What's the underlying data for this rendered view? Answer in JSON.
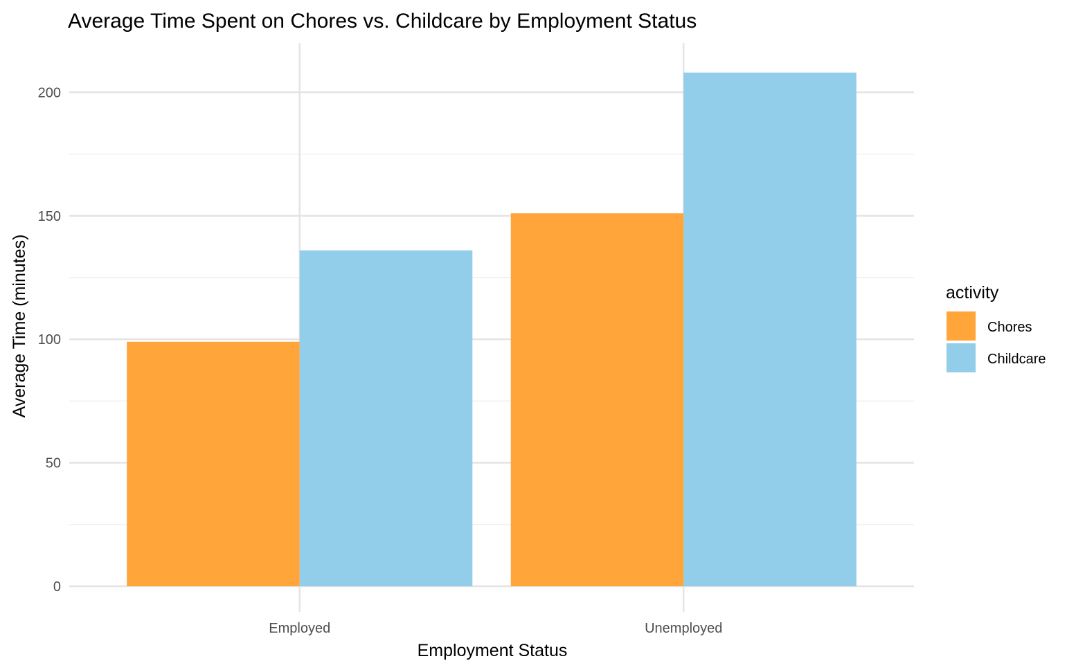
{
  "chart_data": {
    "type": "bar",
    "title": "Average Time Spent on Chores vs. Childcare by Employment Status",
    "xlabel": "Employment Status",
    "ylabel": "Average Time (minutes)",
    "categories": [
      "Employed",
      "Unemployed"
    ],
    "series": [
      {
        "name": "Chores",
        "values": [
          99,
          151
        ],
        "color": "#FFA53A"
      },
      {
        "name": "Childcare",
        "values": [
          136,
          208
        ],
        "color": "#92CDEA"
      }
    ],
    "ylim": [
      0,
      220
    ],
    "yticks": [
      0,
      50,
      100,
      150,
      200
    ],
    "grid": true,
    "legend": {
      "title": "activity",
      "position": "right"
    }
  }
}
